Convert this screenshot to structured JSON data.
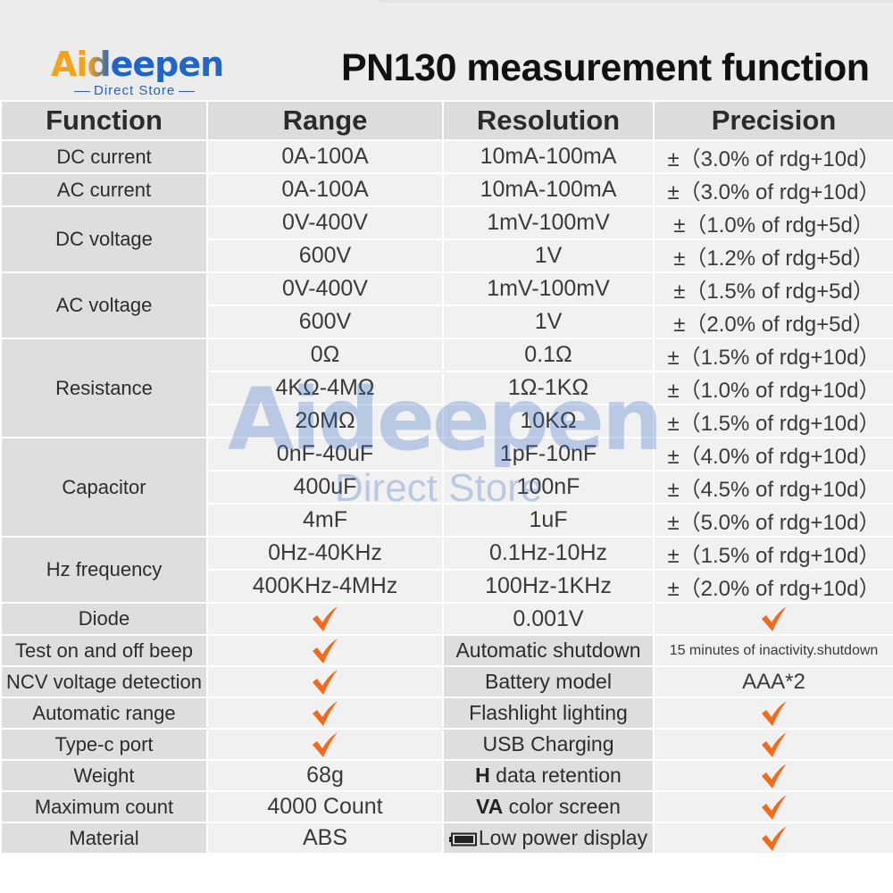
{
  "brand": {
    "name": "Aideepen",
    "sub": "Direct Store"
  },
  "title": "PN130 measurement function",
  "watermark": {
    "name": "Aideepen",
    "sub": "Direct Store"
  },
  "colors": {
    "check": "#f26a1b",
    "header_bg": "#dcdcdc",
    "label_bg": "#dedede",
    "cell_bg": "#f1f1f1",
    "logo_blue": "#2466c8",
    "logo_orange": "#f4a11c"
  },
  "table": {
    "headers": [
      "Function",
      "Range",
      "Resolution",
      "Precision"
    ],
    "measurements": [
      {
        "function": "DC current",
        "rows": [
          {
            "range": "0A-100A",
            "resolution": "10mA-100mA",
            "precision": "±（3.0% of rdg+10d）"
          }
        ]
      },
      {
        "function": "AC current",
        "rows": [
          {
            "range": "0A-100A",
            "resolution": "10mA-100mA",
            "precision": "±（3.0% of rdg+10d）"
          }
        ]
      },
      {
        "function": "DC voltage",
        "rows": [
          {
            "range": "0V-400V",
            "resolution": "1mV-100mV",
            "precision": "±（1.0% of rdg+5d）"
          },
          {
            "range": "600V",
            "resolution": "1V",
            "precision": "±（1.2% of rdg+5d）"
          }
        ]
      },
      {
        "function": "AC voltage",
        "rows": [
          {
            "range": "0V-400V",
            "resolution": "1mV-100mV",
            "precision": "±（1.5% of rdg+5d）"
          },
          {
            "range": "600V",
            "resolution": "1V",
            "precision": "±（2.0% of rdg+5d）"
          }
        ]
      },
      {
        "function": "Resistance",
        "rows": [
          {
            "range": "0Ω",
            "resolution": "0.1Ω",
            "precision": "±（1.5% of rdg+10d）"
          },
          {
            "range": "4KΩ-4MΩ",
            "resolution": "1Ω-1KΩ",
            "precision": "±（1.0% of rdg+10d）"
          },
          {
            "range": "20MΩ",
            "resolution": "10KΩ",
            "precision": "±（1.5% of rdg+10d）"
          }
        ]
      },
      {
        "function": "Capacitor",
        "rows": [
          {
            "range": "0nF-40uF",
            "resolution": "1pF-10nF",
            "precision": "±（4.0% of rdg+10d）"
          },
          {
            "range": "400uF",
            "resolution": "100nF",
            "precision": "±（4.5% of rdg+10d）"
          },
          {
            "range": "4mF",
            "resolution": "1uF",
            "precision": "±（5.0% of rdg+10d）"
          }
        ]
      },
      {
        "function": "Hz frequency",
        "rows": [
          {
            "range": "0Hz-40KHz",
            "resolution": "0.1Hz-10Hz",
            "precision": "±（1.5% of rdg+10d）"
          },
          {
            "range": "400KHz-4MHz",
            "resolution": "100Hz-1KHz",
            "precision": "±（2.0% of rdg+10d）"
          }
        ]
      }
    ],
    "diode": {
      "function": "Diode",
      "resolution": "0.001V"
    },
    "features_left": [
      {
        "label": "Test on and off beep"
      },
      {
        "label": "NCV voltage detection"
      },
      {
        "label": "Automatic range"
      },
      {
        "label": "Type-c port"
      },
      {
        "label": "Weight",
        "value": "68g"
      },
      {
        "label": "Maximum count",
        "value": "4000 Count"
      },
      {
        "label": "Material",
        "value": "ABS"
      }
    ],
    "features_right": [
      {
        "label": "Automatic shutdown",
        "value": "15 minutes of inactivity.shutdown"
      },
      {
        "label": "Battery model",
        "value": "AAA*2"
      },
      {
        "label": "Flashlight lighting"
      },
      {
        "label": "USB Charging"
      },
      {
        "prefix": "H",
        "label": " data retention"
      },
      {
        "prefix": "VA",
        "label": " color screen"
      },
      {
        "icon": "battery-icon",
        "label": "Low power display"
      }
    ]
  }
}
